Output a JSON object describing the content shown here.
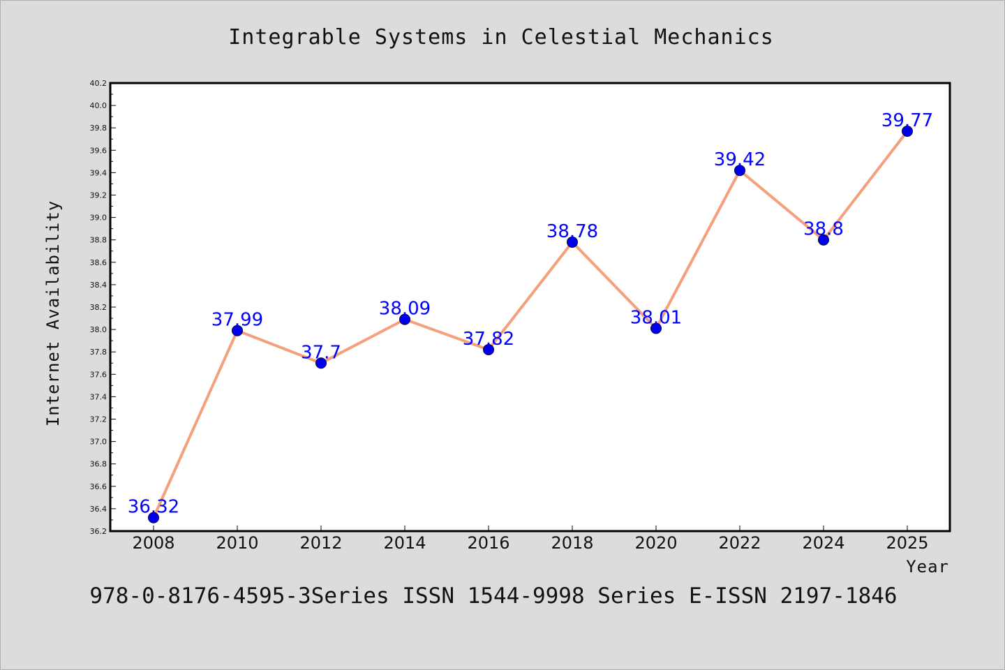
{
  "chart_data": {
    "type": "line",
    "title": "Integrable Systems in Celestial Mechanics",
    "xlabel": "Year",
    "ylabel": "Internet Availability",
    "categories": [
      "2008",
      "2010",
      "2012",
      "2014",
      "2016",
      "2018",
      "2020",
      "2022",
      "2024",
      "2025"
    ],
    "series": [
      {
        "values": [
          36.32,
          37.99,
          37.7,
          38.09,
          37.82,
          38.78,
          38.01,
          39.42,
          38.8,
          39.77
        ]
      }
    ],
    "data_labels": [
      "36.32",
      "37.99",
      "37.7",
      "38.09",
      "37.82",
      "38.78",
      "38.01",
      "39.42",
      "38.8",
      "39.77"
    ],
    "ylim": [
      36.2,
      40.2
    ],
    "yticks": [
      "36.2",
      "36.4",
      "36.6",
      "36.8",
      "37.0",
      "37.2",
      "37.4",
      "37.6",
      "37.8",
      "38.0",
      "38.2",
      "38.4",
      "38.6",
      "38.8",
      "39.0",
      "39.2",
      "39.4",
      "39.6",
      "39.8",
      "40.0",
      "40.2"
    ],
    "grid": false,
    "colors": {
      "line": "#f4a07c",
      "marker": "#0000ee",
      "marker_edge": "#000033",
      "labels": "#0000ff",
      "background": "#dcdcdc",
      "plot_bg": "#ffffff"
    }
  },
  "footer": "978-0-8176-4595-3Series ISSN 1544-9998 Series E-ISSN 2197-1846"
}
